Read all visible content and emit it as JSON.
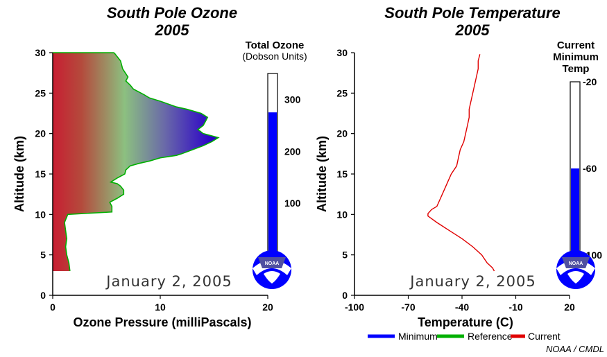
{
  "chart_data": [
    {
      "type": "area",
      "title": "South Pole Ozone",
      "subtitle": "2005",
      "xlabel": "Ozone Pressure (milliPascals)",
      "ylabel": "Altitude (km)",
      "xlim": [
        0,
        20
      ],
      "ylim": [
        0,
        30
      ],
      "xticks": [
        "0",
        "10",
        "20"
      ],
      "yticks": [
        "0",
        "5",
        "10",
        "15",
        "20",
        "25",
        "30"
      ],
      "date": "January 2, 2005",
      "profile": {
        "name": "Reference",
        "color": "#00b000",
        "points": [
          [
            1.6,
            3.0
          ],
          [
            1.5,
            4.0
          ],
          [
            1.3,
            5.0
          ],
          [
            1.2,
            6.0
          ],
          [
            1.3,
            7.0
          ],
          [
            1.2,
            8.0
          ],
          [
            1.1,
            9.0
          ],
          [
            1.4,
            10.0
          ],
          [
            5.5,
            10.3
          ],
          [
            5.5,
            11.0
          ],
          [
            5.3,
            11.5
          ],
          [
            6.0,
            12.0
          ],
          [
            6.6,
            12.5
          ],
          [
            6.6,
            13.0
          ],
          [
            6.3,
            13.5
          ],
          [
            6.0,
            13.8
          ],
          [
            5.4,
            14.0
          ],
          [
            6.0,
            14.5
          ],
          [
            6.7,
            15.0
          ],
          [
            6.8,
            15.5
          ],
          [
            7.2,
            16.0
          ],
          [
            8.0,
            16.3
          ],
          [
            9.0,
            16.6
          ],
          [
            10.0,
            17.0
          ],
          [
            11.5,
            17.3
          ],
          [
            12.0,
            17.5
          ],
          [
            13.0,
            18.0
          ],
          [
            14.0,
            18.5
          ],
          [
            14.8,
            19.0
          ],
          [
            15.4,
            19.5
          ],
          [
            14.0,
            20.0
          ],
          [
            13.5,
            20.5
          ],
          [
            14.0,
            21.0
          ],
          [
            14.2,
            21.5
          ],
          [
            14.4,
            22.0
          ],
          [
            13.8,
            22.5
          ],
          [
            12.5,
            23.0
          ],
          [
            11.5,
            23.3
          ],
          [
            10.0,
            24.0
          ],
          [
            9.0,
            24.4
          ],
          [
            8.5,
            24.8
          ],
          [
            7.5,
            25.5
          ],
          [
            7.2,
            26.0
          ],
          [
            6.8,
            26.5
          ],
          [
            7.0,
            27.0
          ],
          [
            6.5,
            28.0
          ],
          [
            6.3,
            29.0
          ],
          [
            5.7,
            30.0
          ]
        ]
      },
      "column": {
        "title": "Total Ozone",
        "subtitle": "(Dobson Units)",
        "ticks": [
          "100",
          "200",
          "300"
        ],
        "range": [
          0,
          350
        ],
        "value": 275,
        "fill_color": "#0000ff"
      }
    },
    {
      "type": "line",
      "title": "South Pole Temperature",
      "subtitle": "2005",
      "xlabel": "Temperature (C)",
      "ylabel": "Altitude (km)",
      "xlim": [
        -100,
        20
      ],
      "ylim": [
        0,
        30
      ],
      "xticks": [
        "-100",
        "-70",
        "-40",
        "-10",
        "20"
      ],
      "yticks": [
        "0",
        "5",
        "10",
        "15",
        "20",
        "25",
        "30"
      ],
      "date": "January 2, 2005",
      "series": [
        {
          "name": "Current",
          "color": "#e00000",
          "points": [
            [
              -22,
              3.0
            ],
            [
              -23,
              3.4
            ],
            [
              -26,
              4.0
            ],
            [
              -29,
              5.0
            ],
            [
              -34,
              6.0
            ],
            [
              -40,
              7.0
            ],
            [
              -47,
              8.0
            ],
            [
              -54,
              9.0
            ],
            [
              -59,
              9.8
            ],
            [
              -59,
              10.1
            ],
            [
              -57,
              10.6
            ],
            [
              -54,
              11.0
            ],
            [
              -52,
              12.0
            ],
            [
              -50,
              13.0
            ],
            [
              -48,
              14.0
            ],
            [
              -46,
              15.0
            ],
            [
              -43,
              16.0
            ],
            [
              -42,
              17.0
            ],
            [
              -41,
              18.0
            ],
            [
              -39,
              19.0
            ],
            [
              -38,
              20.0
            ],
            [
              -37,
              21.0
            ],
            [
              -36,
              22.0
            ],
            [
              -36,
              23.0
            ],
            [
              -35,
              24.0
            ],
            [
              -34,
              25.0
            ],
            [
              -33,
              26.0
            ],
            [
              -32,
              27.0
            ],
            [
              -31,
              28.0
            ],
            [
              -31,
              29.0
            ],
            [
              -30,
              29.8
            ]
          ]
        }
      ],
      "column": {
        "title_lines": [
          "Current",
          "Minimum",
          "Temp"
        ],
        "ticks": [
          "-20",
          "-60",
          "-100"
        ],
        "range": [
          -100,
          -20
        ],
        "value": -60,
        "fill_color": "#0000ff"
      }
    }
  ],
  "legend": {
    "items": [
      {
        "label": "Minimum",
        "color": "#0000ff"
      },
      {
        "label": "Reference",
        "color": "#00b000"
      },
      {
        "label": "Current",
        "color": "#e00000"
      }
    ]
  },
  "credit": "NOAA / CMDL",
  "logo_text": "NOAA"
}
